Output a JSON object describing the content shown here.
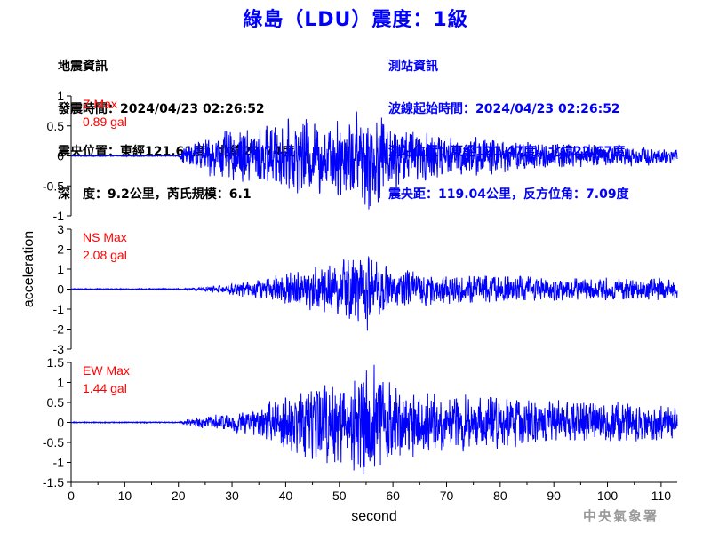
{
  "title": "綠島（LDU）震度：1級",
  "quake_info": {
    "heading": "地震資訊",
    "time": "發震時間：2024/04/23 02:26:52",
    "location": "震央位置：東經121.61度，北緯23.74度",
    "depth_mag": "深　度：9.2公里，芮氏規模：6.1"
  },
  "station_info": {
    "heading": "測站資訊",
    "wave_start": "波線起始時間：2024/04/23 02:26:52",
    "location": "測站位置：東經121.47度，北緯22.67度",
    "distance": "震央距：119.04公里，反方位角：7.09度"
  },
  "watermark": "中央氣象署",
  "colors": {
    "trace": "#0000ff",
    "max_label": "#ff0000",
    "title": "#0000ff"
  },
  "chart_data": {
    "type": "line",
    "xlabel": "second",
    "ylabel": "acceleration",
    "xlim": [
      0,
      113
    ],
    "xticks": [
      0,
      10,
      20,
      30,
      40,
      50,
      60,
      70,
      80,
      90,
      100,
      110
    ],
    "panels": [
      {
        "name": "Z Max",
        "max_value": "0.89 gal",
        "ylim": [
          -1,
          1
        ],
        "yticks": [
          -1,
          -0.5,
          0,
          0.5,
          1
        ],
        "trace": {
          "onset": 20,
          "noise": 0.006,
          "envelope": [
            [
              0,
              0.006
            ],
            [
              20,
              0.006
            ],
            [
              21,
              0.15
            ],
            [
              25,
              0.35
            ],
            [
              30,
              0.45
            ],
            [
              35,
              0.5
            ],
            [
              40,
              0.6
            ],
            [
              45,
              0.65
            ],
            [
              50,
              0.7
            ],
            [
              55,
              0.89
            ],
            [
              60,
              0.6
            ],
            [
              65,
              0.45
            ],
            [
              70,
              0.35
            ],
            [
              75,
              0.35
            ],
            [
              80,
              0.3
            ],
            [
              90,
              0.22
            ],
            [
              100,
              0.18
            ],
            [
              113,
              0.15
            ]
          ]
        },
        "peak": {
          "time": 55.5,
          "value": -0.89
        }
      },
      {
        "name": "NS Max",
        "max_value": "2.08 gal",
        "ylim": [
          -3,
          3
        ],
        "yticks": [
          -3,
          -2,
          -1,
          0,
          1,
          2,
          3
        ],
        "trace": {
          "onset": 20,
          "noise": 0.02,
          "envelope": [
            [
              0,
              0.02
            ],
            [
              20,
              0.02
            ],
            [
              25,
              0.12
            ],
            [
              30,
              0.3
            ],
            [
              35,
              0.5
            ],
            [
              40,
              0.9
            ],
            [
              45,
              1.1
            ],
            [
              50,
              1.5
            ],
            [
              55,
              2.08
            ],
            [
              60,
              1.0
            ],
            [
              65,
              0.9
            ],
            [
              70,
              0.75
            ],
            [
              80,
              0.7
            ],
            [
              90,
              0.6
            ],
            [
              100,
              0.6
            ],
            [
              113,
              0.55
            ]
          ]
        },
        "peak": {
          "time": 55.2,
          "value": -2.08
        }
      },
      {
        "name": "EW Max",
        "max_value": "1.44 gal",
        "ylim": [
          -1.5,
          1.5
        ],
        "yticks": [
          -1.5,
          -1,
          -0.5,
          0,
          0.5,
          1,
          1.5
        ],
        "trace": {
          "onset": 20,
          "noise": 0.01,
          "envelope": [
            [
              0,
              0.01
            ],
            [
              20,
              0.01
            ],
            [
              22,
              0.1
            ],
            [
              30,
              0.25
            ],
            [
              35,
              0.35
            ],
            [
              40,
              0.75
            ],
            [
              45,
              1.0
            ],
            [
              50,
              1.2
            ],
            [
              55,
              1.44
            ],
            [
              60,
              1.0
            ],
            [
              65,
              0.8
            ],
            [
              70,
              0.75
            ],
            [
              80,
              0.65
            ],
            [
              90,
              0.55
            ],
            [
              100,
              0.55
            ],
            [
              113,
              0.45
            ]
          ]
        },
        "peak": {
          "time": 56.5,
          "value": 1.44
        }
      }
    ]
  }
}
